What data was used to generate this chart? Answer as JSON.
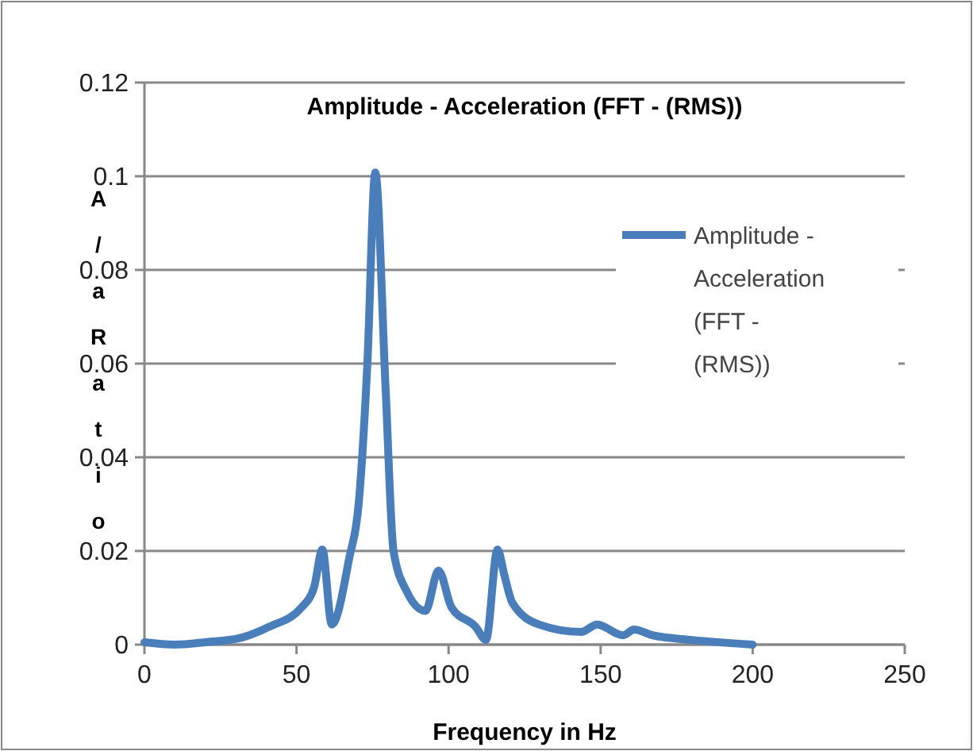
{
  "chart_data": {
    "type": "line",
    "title": "Amplitude - Acceleration (FFT - (RMS))",
    "xlabel": "Frequency in Hz",
    "ylabel": "A/aRatio",
    "x": [
      0,
      10,
      20,
      32,
      41,
      51.6,
      55.8,
      58.5,
      61.6,
      67.2,
      70.7,
      73.3,
      75.9,
      79.3,
      81.9,
      86.3,
      92.4,
      96.7,
      101,
      108.9,
      112.3,
      116.1,
      118.4,
      121,
      129.7,
      143.6,
      148.8,
      157.4,
      161,
      167,
      180,
      200
    ],
    "series": [
      {
        "name": "Amplitude - Acceleration (FFT - (RMS))",
        "color": "#4a7ebb",
        "values": [
          0.0005,
          0,
          0.0005,
          0.0015,
          0.0038,
          0.0079,
          0.0123,
          0.0203,
          0.0043,
          0.018,
          0.032,
          0.06,
          0.1008,
          0.0546,
          0.02,
          0.0113,
          0.0072,
          0.0158,
          0.0079,
          0.0038,
          0.001,
          0.0203,
          0.0147,
          0.0089,
          0.0043,
          0.0027,
          0.0043,
          0.002,
          0.0032,
          0.002,
          0.001,
          0
        ]
      }
    ],
    "xlim": [
      0,
      250
    ],
    "xticks": [
      0,
      50,
      100,
      150,
      200,
      250
    ],
    "ylim": [
      0,
      0.12
    ],
    "yticks": [
      0,
      0.02,
      0.04,
      0.06,
      0.08,
      0.1,
      0.12
    ],
    "grid": "y",
    "legend": "right"
  }
}
